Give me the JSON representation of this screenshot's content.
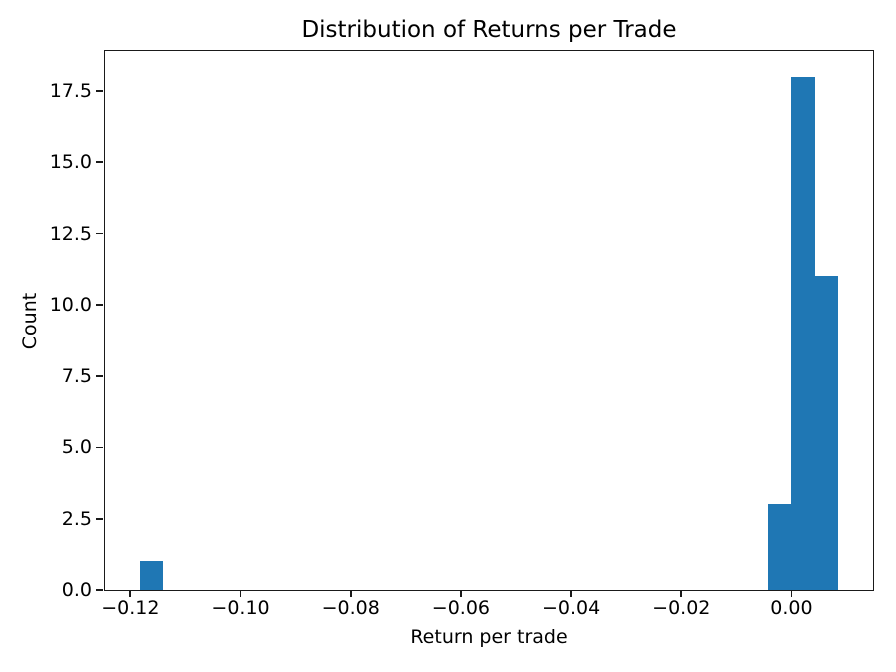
{
  "chart_data": {
    "type": "bar",
    "chart_kind": "histogram",
    "title": "Distribution of Returns per Trade",
    "xlabel": "Return per trade",
    "ylabel": "Count",
    "xlim": [
      -0.1246,
      0.0148
    ],
    "ylim": [
      0,
      18.9
    ],
    "grid": false,
    "legend": null,
    "bar_color": "#1f77b4",
    "axis_color": "#1a1a1a",
    "text_color": "#000000",
    "background": "#ffffff",
    "x_ticks": [
      {
        "value": -0.12,
        "label": "−0.12"
      },
      {
        "value": -0.1,
        "label": "−0.10"
      },
      {
        "value": -0.08,
        "label": "−0.08"
      },
      {
        "value": -0.06,
        "label": "−0.06"
      },
      {
        "value": -0.04,
        "label": "−0.04"
      },
      {
        "value": -0.02,
        "label": "−0.02"
      },
      {
        "value": 0.0,
        "label": "0.00"
      }
    ],
    "y_ticks": [
      {
        "value": 0.0,
        "label": "0.0"
      },
      {
        "value": 2.5,
        "label": "2.5"
      },
      {
        "value": 5.0,
        "label": "5.0"
      },
      {
        "value": 7.5,
        "label": "7.5"
      },
      {
        "value": 10.0,
        "label": "10.0"
      },
      {
        "value": 12.5,
        "label": "12.5"
      },
      {
        "value": 15.0,
        "label": "15.0"
      },
      {
        "value": 17.5,
        "label": "17.5"
      }
    ],
    "bins": [
      {
        "x0": -0.1182,
        "x1": -0.114,
        "count": 1
      },
      {
        "x0": -0.0042,
        "x1": 0.0,
        "count": 3
      },
      {
        "x0": 0.0,
        "x1": 0.0042,
        "count": 18
      },
      {
        "x0": 0.0042,
        "x1": 0.0085,
        "count": 11
      }
    ]
  }
}
